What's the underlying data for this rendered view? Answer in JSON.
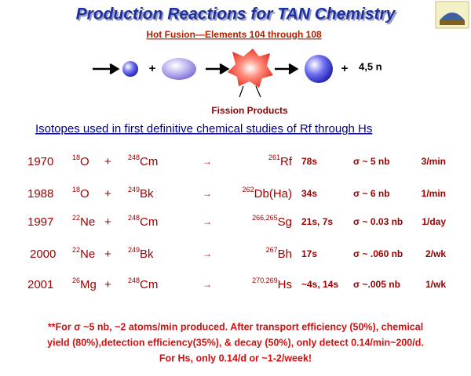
{
  "header": {
    "title": "Production Reactions for TAN Chemistry",
    "subtitle": "Hot Fusion—Elements 104 through 108"
  },
  "diagram": {
    "plus": "+",
    "neutrons": "4,5 n",
    "fission": "Fission Products"
  },
  "heading": "Isotopes used in first  definitive chemical studies of Rf through Hs",
  "table": {
    "rows": [
      {
        "year": "1970",
        "beam_mass": "18",
        "beam": "O",
        "plus": "+",
        "target_mass": "248",
        "target": "Cm",
        "arrow": "→",
        "product_mass": "261",
        "product": "Rf",
        "half_life": "78s",
        "cross_section": "σ ~ 5 nb",
        "rate": "3/min"
      },
      {
        "year": "1988",
        "beam_mass": "18",
        "beam": "O",
        "plus": "+",
        "target_mass": "249",
        "target": "Bk",
        "arrow": "→",
        "product_mass": "262",
        "product": "Db(Ha)",
        "half_life": "34s",
        "cross_section": "σ ~ 6 nb",
        "rate": "1/min"
      },
      {
        "year": "1997",
        "beam_mass": "22",
        "beam": "Ne",
        "plus": "+",
        "target_mass": "248",
        "target": "Cm",
        "arrow": "→",
        "product_mass": "266,265",
        "product": "Sg",
        "half_life": "21s, 7s",
        "cross_section": "σ ~ 0.03 nb",
        "rate": "1/day"
      },
      {
        "year": "2000",
        "beam_mass": "22",
        "beam": "Ne",
        "plus": "+",
        "target_mass": "249",
        "target": "Bk",
        "arrow": "→",
        "product_mass": "267",
        "product": "Bh",
        "half_life": "17s",
        "cross_section": "σ ~ .060 nb",
        "rate": "2/wk"
      },
      {
        "year": "2001",
        "beam_mass": "26",
        "beam": "Mg",
        "plus": "+",
        "target_mass": "248",
        "target": "Cm",
        "arrow": "→",
        "product_mass": "270,269",
        "product": "Hs",
        "half_life": "~4s, 14s",
        "cross_section": "σ ~.005 nb",
        "rate": "1/wk"
      }
    ]
  },
  "footnote": {
    "lines": [
      "**For σ ~5 nb, ~2 atoms/min produced. After transport efficiency (50%), chemical",
      "yield (80%),detection efficiency(35%), & decay (50%), only detect 0.14/min~200/d.",
      "For Hs, only 0.14/d or ~1-2/week!"
    ]
  }
}
